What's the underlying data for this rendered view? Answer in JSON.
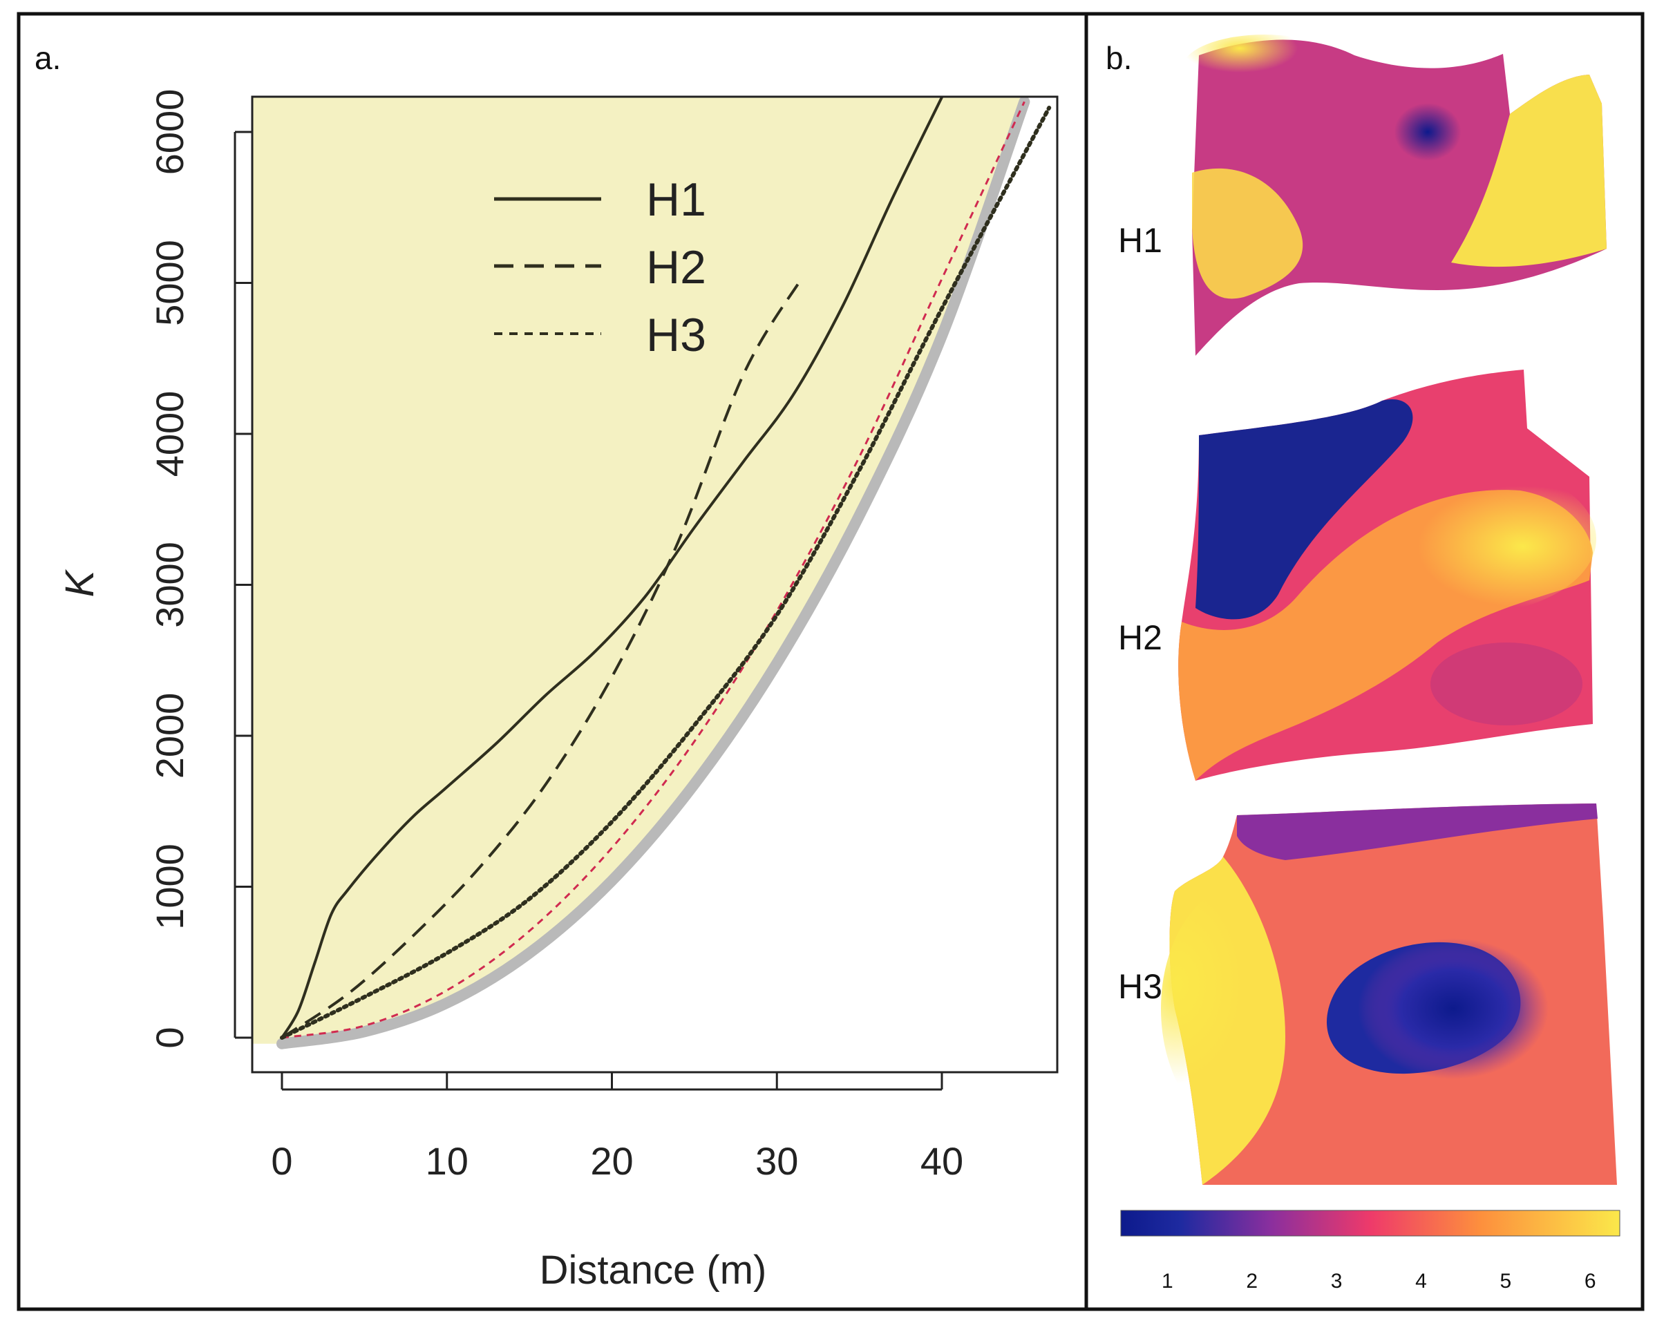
{
  "panels": {
    "a_label": "a.",
    "b_label": "b."
  },
  "chart_data": [
    {
      "type": "line",
      "panel": "a.",
      "title": "",
      "xlabel": "Distance (m)",
      "ylabel": "K",
      "xlim": [
        0,
        46
      ],
      "ylim": [
        -80,
        6250
      ],
      "xticks": [
        0,
        10,
        20,
        30,
        40
      ],
      "yticks": [
        0,
        1000,
        2000,
        3000,
        4000,
        5000,
        6000
      ],
      "xtick_labels": [
        "0",
        "10",
        "20",
        "30",
        "40"
      ],
      "ytick_labels": [
        "0",
        "1000",
        "2000",
        "3000",
        "4000",
        "5000",
        "6000"
      ],
      "legend": {
        "position": "top-center",
        "entries": [
          {
            "label": "H1",
            "style": "solid"
          },
          {
            "label": "H2",
            "style": "dashed"
          },
          {
            "label": "H3",
            "style": "dotted"
          }
        ]
      },
      "envelope": {
        "name": "simulation envelope",
        "color": "#f4f1c2",
        "x": [
          0,
          5,
          10,
          15,
          20,
          25,
          30,
          35,
          40,
          45
        ],
        "lower": [
          -40,
          40,
          230,
          560,
          1040,
          1680,
          2480,
          3460,
          4650,
          6200
        ],
        "upper": [
          6250,
          6250,
          6250,
          6250,
          6250,
          6250,
          6250,
          6250,
          6250,
          6250
        ]
      },
      "theoretical": {
        "name": "CSR expectation",
        "x": [
          0,
          5,
          10,
          15,
          20,
          25,
          30,
          35,
          40,
          45
        ],
        "y": [
          0,
          79,
          314,
          707,
          1257,
          1963,
          2827,
          3848,
          5027,
          6200
        ]
      },
      "series": [
        {
          "name": "H1",
          "style": "solid",
          "x": [
            0,
            1,
            2,
            3,
            4,
            6,
            8,
            10,
            13,
            16,
            19,
            22,
            25,
            28,
            31,
            34,
            37,
            40
          ],
          "y": [
            0,
            180,
            500,
            820,
            980,
            1240,
            1470,
            1660,
            1950,
            2270,
            2560,
            2920,
            3380,
            3820,
            4260,
            4850,
            5560,
            6230
          ]
        },
        {
          "name": "H2",
          "style": "dashed",
          "x": [
            0,
            4,
            8,
            12,
            16,
            20,
            24,
            28,
            31.5
          ],
          "y": [
            0,
            290,
            680,
            1130,
            1680,
            2390,
            3280,
            4400,
            5030
          ]
        },
        {
          "name": "H3",
          "style": "dotted",
          "x": [
            0,
            5,
            10,
            15,
            20,
            25,
            30,
            35,
            40,
            46.5
          ],
          "y": [
            0,
            270,
            560,
            920,
            1430,
            2070,
            2800,
            3760,
            4830,
            6160
          ]
        }
      ]
    },
    {
      "type": "heatmap",
      "panel": "b.",
      "maps": [
        {
          "label": "H1"
        },
        {
          "label": "H2"
        },
        {
          "label": "H3"
        }
      ],
      "colorbar": {
        "ticks": [
          1,
          2,
          3,
          4,
          5,
          6
        ],
        "tick_labels": [
          "1",
          "2",
          "3",
          "4",
          "5",
          "6"
        ],
        "range": [
          0.45,
          6.35
        ],
        "colors": [
          "#0d1a8c",
          "#8a2f9e",
          "#ee3a6a",
          "#fd8f3d",
          "#fbe84a"
        ]
      }
    }
  ]
}
